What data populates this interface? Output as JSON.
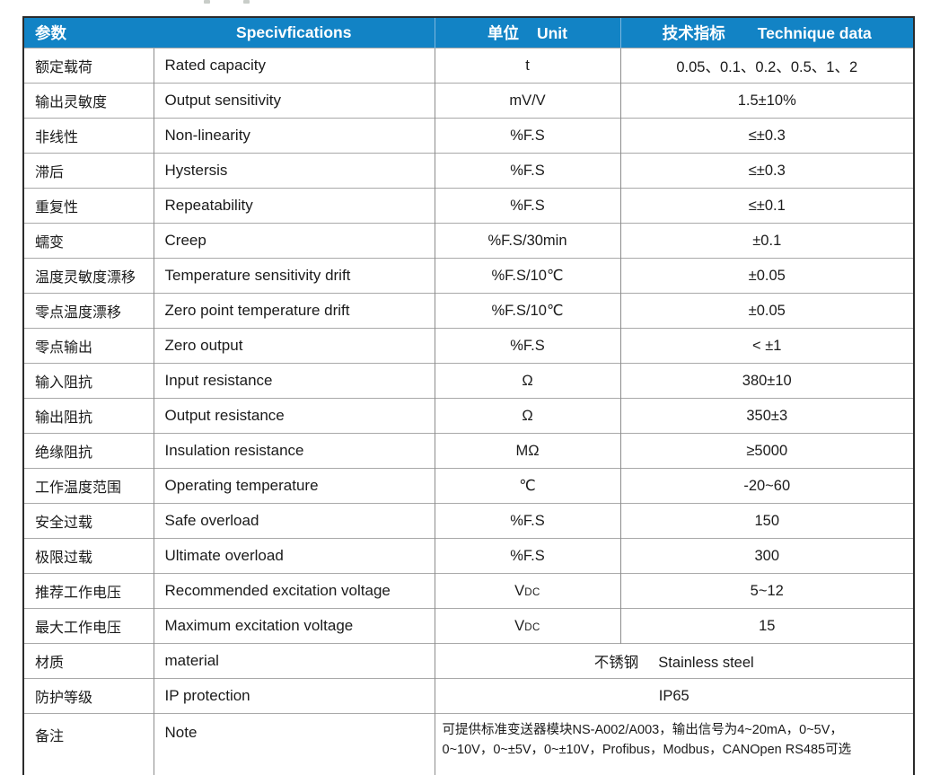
{
  "colors": {
    "header_bg": "#1283c5",
    "header_text": "#ffffff",
    "outer_border": "#2b2b2b",
    "row_line": "#a9a9a9",
    "column_line": "#8c8c8c",
    "body_text": "#1b1b1b"
  },
  "header": {
    "col_param": "参数",
    "col_spec": "Specivfications",
    "col_unit_zh": "单位",
    "col_unit_en": "Unit",
    "col_data_zh": "技术指标",
    "col_data_en": "Technique data"
  },
  "rows": [
    {
      "param": "额定载荷",
      "spec": "Rated capacity",
      "unit": "t",
      "value": "0.05、0.1、0.2、0.5、1、2"
    },
    {
      "param": "输出灵敏度",
      "spec": "Output sensitivity",
      "unit": "mV/V",
      "value": "1.5±10%"
    },
    {
      "param": "非线性",
      "spec": "Non-linearity",
      "unit": "%F.S",
      "value": "≤±0.3"
    },
    {
      "param": "滞后",
      "spec": "Hystersis",
      "unit": "%F.S",
      "value": "≤±0.3"
    },
    {
      "param": "重复性",
      "spec": "Repeatability",
      "unit": "%F.S",
      "value": "≤±0.1"
    },
    {
      "param": "蠕变",
      "spec": "Creep",
      "unit": "%F.S/30min",
      "value": "±0.1"
    },
    {
      "param": "温度灵敏度漂移",
      "spec": "Temperature sensitivity drift",
      "unit": "%F.S/10℃",
      "value": "±0.05"
    },
    {
      "param": "零点温度漂移",
      "spec": "Zero point temperature drift",
      "unit": "%F.S/10℃",
      "value": "±0.05"
    },
    {
      "param": "零点输出",
      "spec": "Zero output",
      "unit": "%F.S",
      "value": "< ±1"
    },
    {
      "param": "输入阻抗",
      "spec": "Input resistance",
      "unit": "Ω",
      "value": "380±10"
    },
    {
      "param": "输出阻抗",
      "spec": "Output resistance",
      "unit": "Ω",
      "value": "350±3"
    },
    {
      "param": "绝缘阻抗",
      "spec": "Insulation resistance",
      "unit": "MΩ",
      "value": "≥5000"
    },
    {
      "param": "工作温度范围",
      "spec": "Operating temperature",
      "unit": "℃",
      "value": "-20~60"
    },
    {
      "param": "安全过载",
      "spec": "Safe overload",
      "unit": "%F.S",
      "value": "150"
    },
    {
      "param": "极限过载",
      "spec": "Ultimate overload",
      "unit": "%F.S",
      "value": "300"
    },
    {
      "param": "推荐工作电压",
      "spec": "Recommended excitation voltage",
      "unit": "V",
      "unit_sub": "DC",
      "value": "5~12"
    },
    {
      "param": "最大工作电压",
      "spec": "Maximum excitation voltage",
      "unit": "V",
      "unit_sub": "DC",
      "value": "15"
    }
  ],
  "merged_rows": {
    "material": {
      "param": "材质",
      "spec": "material",
      "value_zh": "不锈钢",
      "value_en": "Stainless steel"
    },
    "ip": {
      "param": "防护等级",
      "spec": "IP protection",
      "value": "IP65"
    }
  },
  "note_row": {
    "param": "备注",
    "spec": "Note",
    "line1": "可提供标准变送器模块NS-A002/A003，输出信号为4~20mA，0~5V，",
    "line2": "0~10V，0~±5V，0~±10V，Profibus，Modbus，CANOpen RS485可选"
  }
}
